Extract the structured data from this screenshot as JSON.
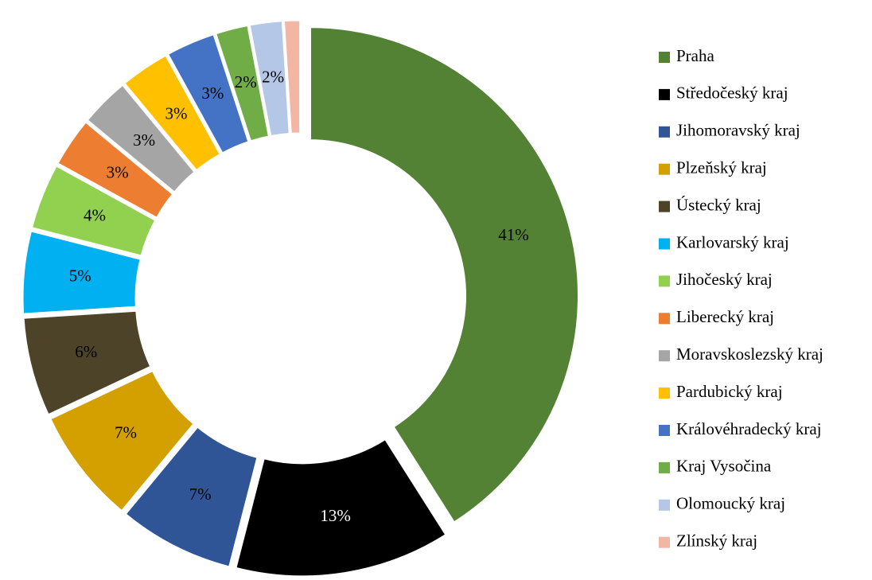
{
  "chart_data": {
    "type": "donut",
    "categories": [
      "Praha",
      "Středočeský kraj",
      "Jihomoravský kraj",
      "Plzeňský kraj",
      "Ústecký kraj",
      "Karlovarský kraj",
      "Jihočeský kraj",
      "Liberecký kraj",
      "Moravskoslezský kraj",
      "Pardubický kraj",
      "Královéhradecký kraj",
      "Kraj Vysočina",
      "Olomoucký kraj",
      "Zlínský kraj"
    ],
    "values": [
      41,
      13,
      7,
      7,
      6,
      5,
      4,
      3,
      3,
      3,
      3,
      2,
      2,
      1
    ],
    "value_labels": [
      "41%",
      "13%",
      "7%",
      "7%",
      "6%",
      "5%",
      "4%",
      "3%",
      "3%",
      "3%",
      "3%",
      "2%",
      "2%",
      null
    ],
    "colors": [
      "#548235",
      "#000000",
      "#2f5597",
      "#d4a000",
      "#4d4329",
      "#00b0f0",
      "#92d050",
      "#ed7d31",
      "#a5a5a5",
      "#ffc000",
      "#4472c4",
      "#70ad47",
      "#b4c7e7",
      "#f4b6a4"
    ],
    "legend": "right"
  }
}
